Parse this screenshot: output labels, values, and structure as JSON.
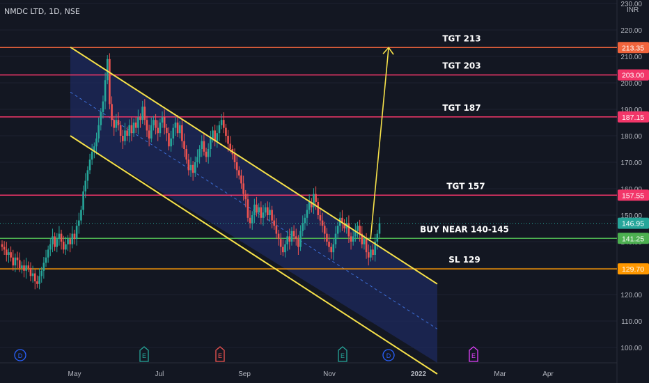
{
  "symbol": "NMDC LTD, 1D, NSE",
  "currency": "INR",
  "colors": {
    "background": "#131722",
    "up": "#26a69a",
    "down": "#ef5350",
    "channel_line": "#f7e24a",
    "channel_fill": "#1e2a5e",
    "target_line": "#f23669",
    "tgt213_line": "#f0643c",
    "buy_line": "#4caf50",
    "sl_line": "#ff9800",
    "axis_text": "#b2b5be"
  },
  "chart_data": {
    "type": "candlestick",
    "title": "NMDC LTD, 1D, NSE",
    "ylim": [
      95,
      230
    ],
    "y_ticks": [
      "100.00",
      "110.00",
      "120.00",
      "130.00",
      "140.00",
      "150.00",
      "160.00",
      "170.00",
      "180.00",
      "190.00",
      "200.00",
      "210.00",
      "220.00",
      "230.00"
    ],
    "x_ticks": [
      "May",
      "Jul",
      "Sep",
      "Nov",
      "2022",
      "Mar",
      "Apr"
    ],
    "last_price": 146.95,
    "levels": [
      {
        "label": "TGT 213",
        "price": 213.35,
        "badge": "213.35",
        "color": "#f0643c"
      },
      {
        "label": "TGT 203",
        "price": 203.0,
        "badge": "203.00",
        "color": "#f23669"
      },
      {
        "label": "TGT 187",
        "price": 187.15,
        "badge": "187.15",
        "color": "#f23669"
      },
      {
        "label": "TGT 157",
        "price": 157.55,
        "badge": "157.55",
        "color": "#f23669"
      },
      {
        "label": "BUY NEAR 140-145",
        "price": 141.25,
        "badge": "141.25",
        "color": "#4caf50"
      },
      {
        "label": "SL 129",
        "price": 129.7,
        "badge": "129.70",
        "color": "#ff9800"
      }
    ],
    "last_price_badge": "146.95",
    "channel": {
      "upper": [
        [
          "Apr 29",
          213.5
        ],
        [
          "Jan 18",
          124
        ]
      ],
      "lower": [
        [
          "Apr 29",
          180
        ],
        [
          "Jan 18",
          90
        ]
      ],
      "mid": [
        [
          "Apr 29",
          196.5
        ],
        [
          "Jan 18",
          107
        ]
      ]
    },
    "projection_arrow": {
      "from": [
        "Dec 1",
        141
      ],
      "to": [
        "Dec 14",
        213.35
      ]
    },
    "closes": [
      138,
      137,
      135,
      136,
      134,
      131,
      134,
      133,
      130,
      131,
      129,
      131,
      130,
      127,
      128,
      125,
      124,
      127,
      129,
      132,
      134,
      137,
      139,
      142,
      138,
      141,
      143,
      140,
      137,
      139,
      141,
      139,
      143,
      141,
      146,
      148,
      152,
      159,
      163,
      167,
      171,
      174,
      176,
      179,
      184,
      189,
      193,
      201,
      209,
      192,
      186,
      183,
      186,
      184,
      180,
      178,
      182,
      180,
      184,
      181,
      185,
      183,
      187,
      186,
      191,
      186,
      182,
      179,
      184,
      186,
      183,
      181,
      185,
      187,
      183,
      181,
      176,
      179,
      183,
      185,
      181,
      184,
      178,
      175,
      171,
      167,
      169,
      166,
      170,
      172,
      175,
      178,
      174,
      172,
      175,
      179,
      182,
      178,
      181,
      184,
      186,
      183,
      180,
      177,
      175,
      173,
      170,
      167,
      165,
      162,
      158,
      156,
      149,
      147,
      150,
      154,
      151,
      153,
      149,
      151,
      153,
      150,
      152,
      148,
      146,
      143,
      141,
      138,
      136,
      139,
      142,
      140,
      144,
      142,
      141,
      138,
      144,
      147,
      149,
      152,
      155,
      153,
      158,
      155,
      150,
      148,
      146,
      143,
      140,
      138,
      136,
      139,
      143,
      146,
      149,
      147,
      145,
      147,
      142,
      140,
      142,
      144,
      146,
      143,
      139,
      141,
      136,
      134,
      137,
      135,
      140,
      143,
      147
    ],
    "markers": [
      {
        "letter": "D",
        "x": "Apr 13",
        "color": "#2962ff"
      },
      {
        "letter": "E",
        "x": "Jun 23",
        "color": "#26a69a"
      },
      {
        "letter": "E",
        "x": "Aug 13",
        "color": "#ef5350"
      },
      {
        "letter": "E",
        "x": "Nov 13",
        "color": "#26a69a"
      },
      {
        "letter": "D",
        "x": "Dec 9",
        "color": "#2962ff"
      },
      {
        "letter": "E",
        "x": "Jan 23",
        "color": "#e040fb"
      }
    ]
  }
}
